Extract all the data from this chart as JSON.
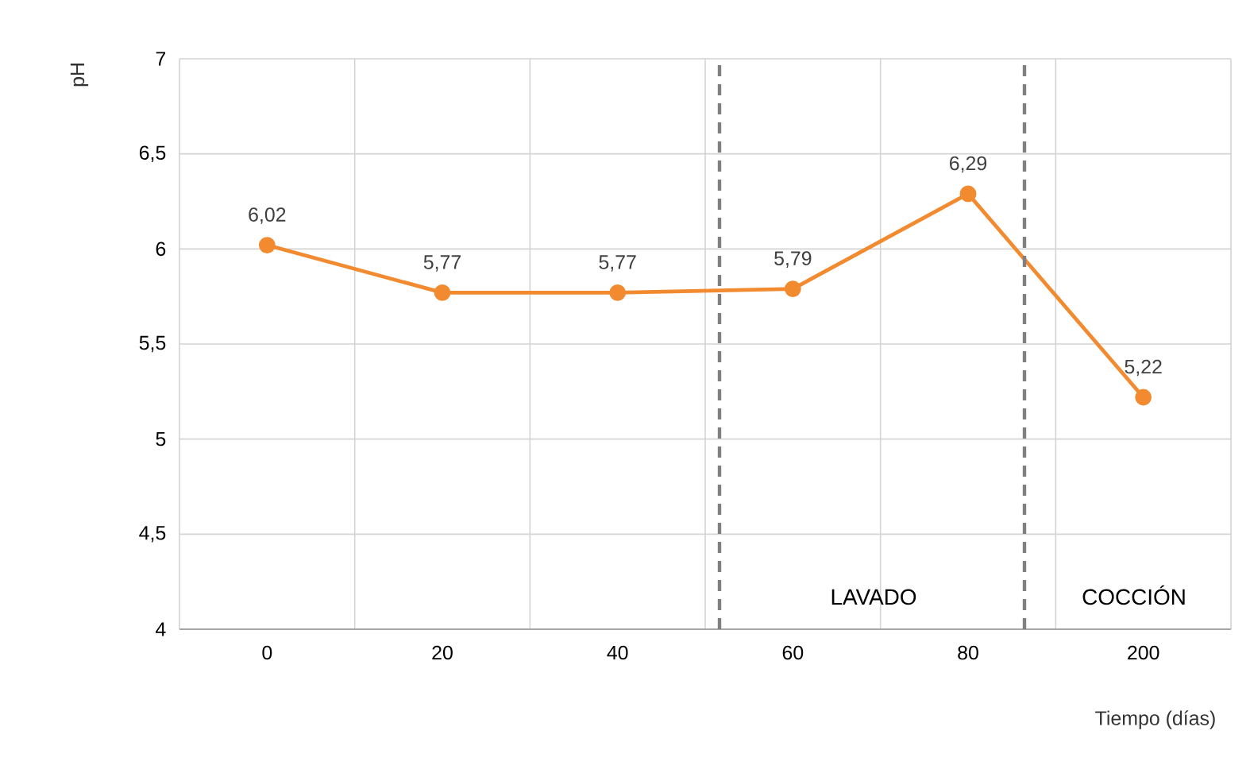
{
  "chart_data": {
    "type": "line",
    "xlabel": "Tiempo (días)",
    "ylabel": "pH",
    "categories": [
      "0",
      "20",
      "40",
      "60",
      "80",
      "200"
    ],
    "series": [
      {
        "color": "#f28a30",
        "values": [
          6.02,
          5.77,
          5.77,
          5.79,
          6.29,
          5.22
        ],
        "value_labels": [
          "6,02",
          "5,77",
          "5,77",
          "5,79",
          "6,29",
          "5,22"
        ]
      }
    ],
    "ylim": [
      4,
      7
    ],
    "yticks": [
      4,
      {
        "value": 4.5,
        "label": "4,5"
      },
      5,
      {
        "value": 5.5,
        "label": "5,5"
      },
      6,
      {
        "value": 6.5,
        "label": "6,5"
      },
      7
    ],
    "annotations": [
      "LAVADO",
      "COCCIÓN"
    ],
    "grid": true,
    "marker": "circle",
    "line_style": "solid"
  }
}
